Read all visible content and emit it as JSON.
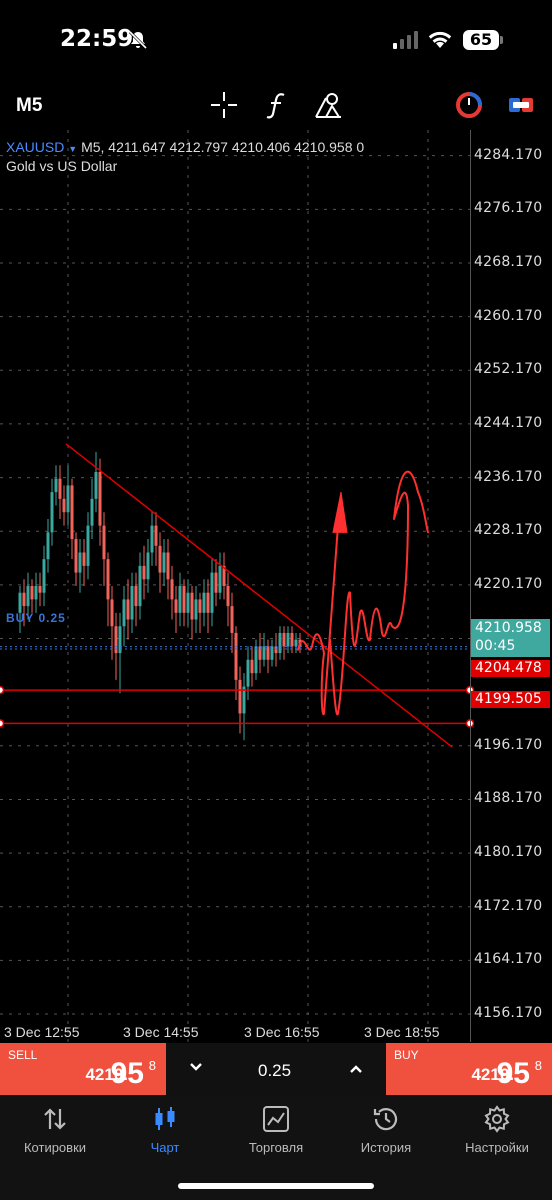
{
  "status": {
    "time": "22:59",
    "battery": "65"
  },
  "toolbar": {
    "timeframe": "M5"
  },
  "symbol": {
    "name": "XAUUSD",
    "arrow": "▼",
    "quote_line": "M5, 4211.647 4212.797 4210.406 4210.958 0",
    "description": "Gold vs US Dollar"
  },
  "price_axis": [
    "4284.170",
    "4276.170",
    "4268.170",
    "4260.170",
    "4252.170",
    "4244.170",
    "4236.170",
    "4228.170",
    "4220.170",
    "4196.170",
    "4188.170",
    "4180.170",
    "4172.170",
    "4164.170",
    "4156.170"
  ],
  "current_price": {
    "value": "4210.958",
    "countdown": "00:45"
  },
  "levels": [
    "4204.478",
    "4199.505"
  ],
  "buy_line_label": "BUY 0.25",
  "time_axis": [
    "3 Dec 12:55",
    "3 Dec 14:55",
    "3 Dec 16:55",
    "3 Dec 18:55"
  ],
  "chart_data": {
    "type": "candlestick",
    "symbol": "XAUUSD",
    "timeframe": "M5",
    "ylim": [
      4152,
      4288
    ],
    "open": 4211.647,
    "high": 4212.797,
    "low": 4210.406,
    "close": 4210.958,
    "horizontal_levels": [
      4204.478,
      4199.505
    ],
    "current_price": 4210.958,
    "x_ticks": [
      "3 Dec 12:55",
      "3 Dec 14:55",
      "3 Dec 16:55",
      "3 Dec 18:55"
    ],
    "colors": {
      "up": "#3aa89e",
      "down": "#f2645a",
      "level": "#e00000",
      "trendline": "#e00000"
    }
  },
  "trade": {
    "sell_label": "SELL",
    "sell_price": "4210.",
    "sell_big": "95",
    "sell_sup": "8",
    "buy_label": "BUY",
    "buy_price": "4210.",
    "buy_big": "95",
    "buy_sup": "8",
    "volume": "0.25",
    "dec_icon": "⌄",
    "inc_icon": "⌃"
  },
  "nav": [
    {
      "label": "Котировки",
      "icon": "quotes-icon"
    },
    {
      "label": "Чарт",
      "icon": "chart-icon"
    },
    {
      "label": "Торговля",
      "icon": "trade-icon"
    },
    {
      "label": "История",
      "icon": "history-icon"
    },
    {
      "label": "Настройки",
      "icon": "settings-icon"
    }
  ]
}
